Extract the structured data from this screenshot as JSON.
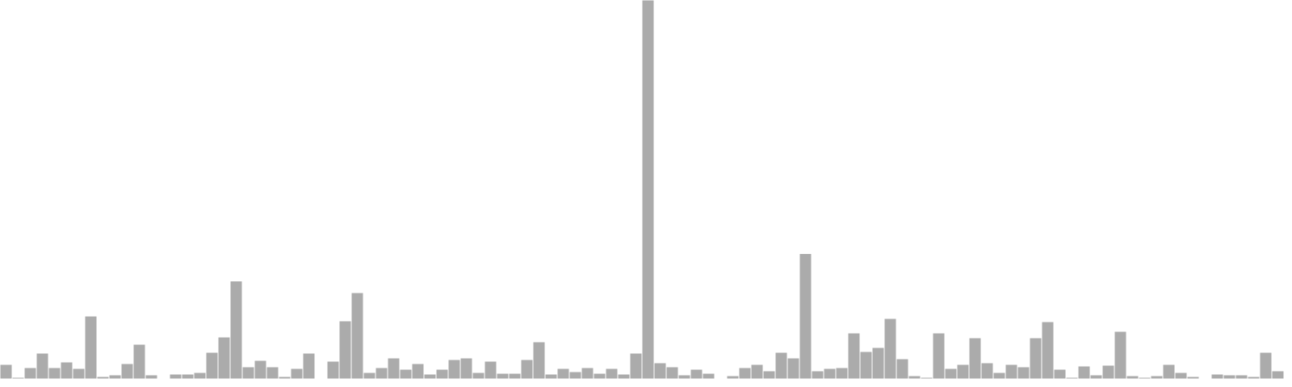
{
  "chart_data": {
    "type": "bar",
    "ylim": [
      0,
      469
    ],
    "grid": false,
    "legend": "none",
    "colors": {
      "bar": "#ababab",
      "background": "#ffffff",
      "bar_edge": "#ffffff"
    },
    "values": [
      18,
      2,
      14,
      32,
      14,
      21,
      13,
      78,
      3,
      5,
      19,
      43,
      5,
      0,
      6,
      6,
      8,
      33,
      52,
      121,
      15,
      23,
      15,
      3,
      13,
      32,
      0,
      22,
      72,
      107,
      8,
      14,
      26,
      12,
      19,
      6,
      12,
      24,
      26,
      8,
      22,
      7,
      7,
      24,
      46,
      6,
      13,
      9,
      14,
      7,
      13,
      6,
      32,
      469,
      20,
      15,
      5,
      12,
      7,
      0,
      4,
      14,
      18,
      10,
      33,
      26,
      155,
      10,
      13,
      14,
      57,
      34,
      39,
      75,
      25,
      4,
      2,
      57,
      13,
      18,
      51,
      20,
      8,
      18,
      15,
      51,
      71,
      12,
      2,
      16,
      5,
      17,
      59,
      4,
      2,
      4,
      18,
      8,
      3,
      1,
      6,
      5,
      5,
      3,
      33,
      10
    ]
  }
}
